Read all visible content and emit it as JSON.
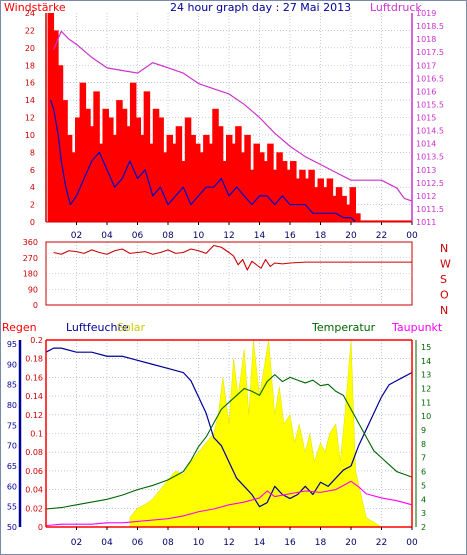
{
  "title": "24 hour graph day : 27 Mai 2013",
  "x_ticks": [
    "02",
    "04",
    "06",
    "08",
    "10",
    "12",
    "14",
    "16",
    "18",
    "20",
    "22",
    "00"
  ],
  "colors": {
    "wind": "#ff0000",
    "gust": "#ff0000",
    "wind_avg": "#0000cc",
    "pressure": "#cc33cc",
    "direction": "#cc0000",
    "humidity": "#000099",
    "temperature": "#006600",
    "dewpoint": "#ff00ff",
    "solar": "#ffff00",
    "rain": "#ff0000",
    "grid": "#9aa8c8"
  },
  "chart_data": [
    {
      "type": "line",
      "name": "wind-pressure",
      "left_label": "Windstärke",
      "right_label": "Luftdruck",
      "left_ticks": [
        "24",
        "22",
        "20",
        "18",
        "16",
        "14",
        "12",
        "10",
        "8",
        "6",
        "4",
        "2",
        "0"
      ],
      "right_ticks": [
        "1019",
        "1018.5",
        "1018",
        "1017.5",
        "1017",
        "1016.5",
        "1016",
        "1015.5",
        "1015",
        "1014.5",
        "1014",
        "1013.5",
        "1013",
        "1012.5",
        "1012",
        "1011.5",
        "1011"
      ],
      "ylim_left": [
        0,
        24
      ],
      "ylim_right": [
        1011,
        1019
      ],
      "xlim": [
        0,
        24
      ],
      "series": [
        {
          "key": "pressure",
          "x": [
            0.5,
            1,
            1.5,
            2,
            3,
            4,
            5,
            6,
            6.5,
            7,
            7.5,
            8,
            9,
            10,
            11,
            12,
            13,
            14,
            15,
            16,
            17,
            18,
            19,
            20,
            21,
            22,
            23,
            23.5,
            24
          ],
          "y": [
            1017.6,
            1018.3,
            1018.0,
            1017.8,
            1017.3,
            1016.9,
            1016.8,
            1016.7,
            1016.9,
            1017.1,
            1017.0,
            1016.9,
            1016.7,
            1016.3,
            1016.1,
            1015.9,
            1015.5,
            1015.0,
            1014.4,
            1013.9,
            1013.5,
            1013.2,
            1012.9,
            1012.6,
            1012.6,
            1012.6,
            1012.3,
            1011.9,
            1011.8
          ]
        },
        {
          "key": "wind_avg",
          "x": [
            0.3,
            0.5,
            0.8,
            1,
            1.3,
            1.6,
            2,
            2.5,
            3,
            3.5,
            4,
            4.5,
            5,
            5.5,
            6,
            6.5,
            7,
            7.5,
            8,
            8.5,
            9,
            9.5,
            10,
            10.5,
            11,
            11.5,
            12,
            12.5,
            13,
            13.5,
            14,
            14.5,
            15,
            15.5,
            16,
            16.5,
            17,
            17.5,
            18,
            18.5,
            19,
            19.5,
            20,
            20.3
          ],
          "y": [
            14,
            13,
            10,
            7,
            4,
            2,
            3,
            5,
            7,
            8,
            6,
            4,
            5,
            7,
            5,
            6,
            3,
            4,
            2,
            3,
            4,
            2,
            3,
            4,
            4,
            5,
            3,
            4,
            3,
            2,
            3,
            3,
            2,
            3,
            2,
            2,
            2,
            1,
            1,
            1,
            1,
            0.5,
            0.5,
            0
          ]
        }
      ],
      "gust_x": [
        0.3,
        0.6,
        0.9,
        1.2,
        1.5,
        1.8,
        2.1,
        2.4,
        2.7,
        3,
        3.3,
        3.6,
        3.9,
        4.2,
        4.5,
        4.8,
        5.1,
        5.4,
        5.7,
        6,
        6.3,
        6.6,
        6.9,
        7.2,
        7.5,
        7.8,
        8.1,
        8.4,
        8.7,
        9,
        9.3,
        9.6,
        9.9,
        10.2,
        10.5,
        10.8,
        11.1,
        11.4,
        11.7,
        12,
        12.3,
        12.6,
        12.9,
        13.2,
        13.5,
        13.8,
        14.1,
        14.4,
        14.7,
        15,
        15.3,
        15.6,
        15.9,
        16.2,
        16.5,
        16.8,
        17.1,
        17.4,
        17.7,
        18,
        18.3,
        18.6,
        18.9,
        19.2,
        19.5,
        19.8,
        20.1,
        20.4
      ],
      "gust_y": [
        24,
        22,
        18,
        14,
        10,
        8,
        12,
        16,
        13,
        11,
        15,
        9,
        13,
        12,
        10,
        14,
        13,
        11,
        16,
        12,
        10,
        15,
        9,
        13,
        12,
        8,
        10,
        9,
        11,
        7,
        12,
        10,
        9,
        8,
        10,
        9,
        13,
        11,
        7,
        10,
        9,
        11,
        8,
        10,
        6,
        9,
        8,
        7,
        9,
        6,
        8,
        7,
        6,
        7,
        5,
        6,
        5,
        6,
        4,
        5,
        4,
        5,
        3,
        4,
        3,
        2,
        4,
        1
      ]
    },
    {
      "type": "line",
      "name": "wind-direction",
      "left_ticks": [
        "360",
        "270",
        "180",
        "90",
        "0"
      ],
      "right_ticks": [
        "N",
        "W",
        "S",
        "O",
        "N"
      ],
      "ylim": [
        0,
        360
      ],
      "xlim": [
        0,
        24
      ],
      "x": [
        0.5,
        1,
        1.5,
        2,
        2.5,
        3,
        3.5,
        4,
        4.5,
        5,
        5.5,
        6,
        6.5,
        7,
        7.5,
        8,
        8.5,
        9,
        9.5,
        10,
        10.5,
        11,
        11.5,
        12,
        12.3,
        12.6,
        12.9,
        13.2,
        13.5,
        13.8,
        14.1,
        14.4,
        14.7,
        15,
        15.5,
        16,
        17,
        18,
        19,
        20,
        21,
        22,
        23,
        24
      ],
      "y": [
        300,
        290,
        310,
        305,
        295,
        315,
        300,
        290,
        310,
        320,
        295,
        300,
        305,
        290,
        300,
        315,
        295,
        300,
        320,
        310,
        295,
        340,
        330,
        300,
        280,
        230,
        260,
        200,
        250,
        230,
        210,
        260,
        220,
        240,
        235,
        240,
        245,
        245,
        245,
        245,
        245,
        245,
        245,
        245
      ]
    },
    {
      "type": "line",
      "name": "rain-humidity-temperature",
      "labels": {
        "rain": "Regen",
        "humidity": "Luftfeuchte",
        "solar": "Solar",
        "temperature": "Temperatur",
        "dewpoint": "Taupunkt"
      },
      "rain_ticks": [
        "0.2",
        "0.18",
        "0.16",
        "0.14",
        "0.12",
        "0.1",
        "0.08",
        "0.06",
        "0.04",
        "0.02",
        "0"
      ],
      "humidity_ticks": [
        "95",
        "90",
        "85",
        "80",
        "75",
        "70",
        "65",
        "60",
        "55",
        "50"
      ],
      "temp_ticks": [
        "15",
        "14",
        "13",
        "12",
        "11",
        "10",
        "9",
        "8",
        "7",
        "6",
        "5",
        "4",
        "3",
        "2"
      ],
      "ylim_humidity": [
        50,
        96
      ],
      "ylim_temp": [
        2,
        15.5
      ],
      "xlim": [
        0,
        24
      ],
      "humidity": {
        "x": [
          0,
          0.5,
          1,
          2,
          3,
          4,
          5,
          6,
          7,
          8,
          9,
          9.5,
          10,
          10.5,
          11,
          11.5,
          12,
          12.5,
          13,
          13.5,
          14,
          14.5,
          15,
          15.5,
          16,
          16.5,
          17,
          17.5,
          18,
          18.5,
          19,
          19.5,
          20,
          20.5,
          21,
          21.5,
          22,
          22.5,
          23,
          23.5,
          24
        ],
        "y": [
          93,
          94,
          94,
          93,
          93,
          92,
          92,
          91,
          90,
          89,
          88,
          86,
          82,
          78,
          72,
          70,
          66,
          62,
          60,
          58,
          55,
          56,
          60,
          58,
          57,
          58,
          60,
          58,
          61,
          60,
          62,
          64,
          65,
          70,
          74,
          78,
          82,
          85,
          86,
          87,
          88
        ]
      },
      "temperature": {
        "x": [
          0,
          1,
          2,
          3,
          4,
          5,
          6,
          7,
          8,
          9,
          9.5,
          10,
          10.5,
          11,
          11.5,
          12,
          12.5,
          13,
          13.5,
          14,
          14.5,
          15,
          15.5,
          16,
          16.5,
          17,
          17.5,
          18,
          18.5,
          19,
          19.5,
          20,
          20.5,
          21,
          21.5,
          22,
          22.5,
          23,
          23.5,
          24
        ],
        "y": [
          3.3,
          3.4,
          3.6,
          3.8,
          4.0,
          4.3,
          4.7,
          5.0,
          5.4,
          6.0,
          6.8,
          7.8,
          8.5,
          9.5,
          10.5,
          11.0,
          11.5,
          12.0,
          11.8,
          11.5,
          12.5,
          13.0,
          12.5,
          12.8,
          12.6,
          12.4,
          12.6,
          12.2,
          12.3,
          11.8,
          11.5,
          10.5,
          9.5,
          8.5,
          7.5,
          7.0,
          6.5,
          6.0,
          5.8,
          5.6
        ]
      },
      "dewpoint": {
        "x": [
          0,
          1,
          2,
          3,
          4,
          5,
          6,
          7,
          8,
          9,
          10,
          11,
          12,
          13,
          14,
          14.5,
          15,
          16,
          17,
          18,
          19,
          20,
          20.5,
          21,
          22,
          23,
          24
        ],
        "y": [
          2.1,
          2.2,
          2.2,
          2.2,
          2.3,
          2.3,
          2.4,
          2.5,
          2.6,
          2.8,
          3.1,
          3.3,
          3.6,
          3.8,
          4.1,
          4.6,
          4.2,
          4.4,
          4.6,
          4.5,
          4.7,
          5.3,
          4.9,
          4.4,
          4.1,
          3.9,
          3.6
        ]
      },
      "solar": {
        "x": [
          5.5,
          6,
          6.5,
          7,
          7.5,
          8,
          8.5,
          9,
          9.5,
          10,
          10.5,
          11,
          11.3,
          11.6,
          12,
          12.3,
          12.6,
          13,
          13.3,
          13.6,
          14,
          14.3,
          14.6,
          15,
          15.3,
          15.6,
          16,
          16.3,
          16.6,
          17,
          17.3,
          17.6,
          18,
          18.3,
          18.6,
          19,
          19.3,
          19.6,
          20,
          20.3,
          21,
          22
        ],
        "v": [
          0.05,
          0.1,
          0.12,
          0.15,
          0.2,
          0.25,
          0.3,
          0.28,
          0.35,
          0.4,
          0.45,
          0.5,
          0.6,
          0.8,
          0.55,
          0.9,
          0.7,
          0.95,
          0.6,
          1.0,
          0.7,
          0.85,
          1.0,
          0.6,
          0.75,
          0.55,
          0.6,
          0.45,
          0.55,
          0.4,
          0.5,
          0.35,
          0.45,
          0.4,
          0.5,
          0.55,
          0.35,
          0.6,
          1.0,
          0.3,
          0.05,
          0
        ]
      }
    }
  ]
}
